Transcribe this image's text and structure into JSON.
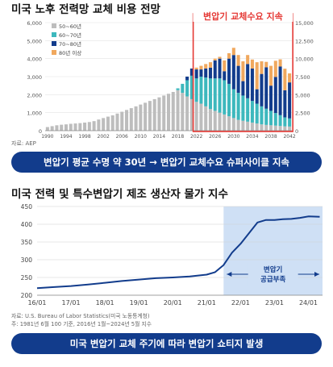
{
  "chart_data": [
    {
      "type": "bar",
      "stacked": true,
      "title": "미국 노후 전력망 교체 비용 전망",
      "ylabel": "",
      "ylabel_right": "",
      "ylim": [
        0,
        6000
      ],
      "ylim_right": [
        0,
        15000
      ],
      "y_ticks": [
        0,
        1000,
        2000,
        3000,
        4000,
        5000,
        6000
      ],
      "y_ticks_right": [
        "0",
        "2,500",
        "5,000",
        "7,500",
        "10,000",
        "12,500",
        "15,000"
      ],
      "x": [
        1990,
        1991,
        1992,
        1993,
        1994,
        1995,
        1996,
        1997,
        1998,
        1999,
        2000,
        2001,
        2002,
        2003,
        2004,
        2005,
        2006,
        2007,
        2008,
        2009,
        2010,
        2011,
        2012,
        2013,
        2014,
        2015,
        2016,
        2017,
        2018,
        2019,
        2020,
        2021,
        2022,
        2023,
        2024,
        2025,
        2026,
        2027,
        2028,
        2029,
        2030,
        2031,
        2032,
        2033,
        2034,
        2035,
        2036,
        2037,
        2038,
        2039,
        2040,
        2041,
        2042
      ],
      "x_ticks": [
        "1990",
        "1994",
        "1998",
        "2002",
        "2006",
        "2010",
        "2014",
        "2018",
        "2022",
        "2026",
        "2030",
        "2034",
        "2038",
        "2042"
      ],
      "series": [
        {
          "name": "50~60년",
          "color": "#bdbdbd",
          "values": [
            200,
            250,
            300,
            330,
            350,
            380,
            400,
            420,
            450,
            480,
            530,
            620,
            700,
            780,
            850,
            950,
            1050,
            1150,
            1250,
            1350,
            1450,
            1550,
            1650,
            1750,
            1850,
            1950,
            2050,
            2150,
            2250,
            2100,
            1900,
            1750,
            1600,
            1500,
            1350,
            1200,
            1100,
            1000,
            900,
            800,
            700,
            600,
            550,
            500,
            450,
            400,
            350,
            320,
            300,
            280,
            260,
            240,
            230
          ]
        },
        {
          "name": "60~70년",
          "color": "#3db8bd",
          "values": [
            0,
            0,
            0,
            0,
            0,
            0,
            0,
            0,
            0,
            0,
            0,
            0,
            0,
            0,
            0,
            0,
            0,
            0,
            0,
            0,
            0,
            0,
            0,
            0,
            0,
            0,
            0,
            0,
            100,
            500,
            900,
            1300,
            1300,
            1500,
            1600,
            1700,
            1800,
            1900,
            1900,
            1800,
            1600,
            1500,
            1400,
            1300,
            1200,
            1100,
            1000,
            900,
            800,
            700,
            600,
            500,
            450
          ]
        },
        {
          "name": "70~80년",
          "color": "#123c8c",
          "values": [
            0,
            0,
            0,
            0,
            0,
            0,
            0,
            0,
            0,
            0,
            0,
            0,
            0,
            0,
            0,
            0,
            0,
            0,
            0,
            0,
            0,
            0,
            0,
            0,
            0,
            0,
            0,
            0,
            0,
            0,
            200,
            400,
            500,
            400,
            500,
            600,
            1000,
            1100,
            500,
            1400,
            1900,
            1500,
            800,
            1900,
            1800,
            800,
            1800,
            2300,
            1400,
            2000,
            2700,
            1500,
            2000
          ]
        },
        {
          "name": "80년 이상",
          "color": "#f0a85e",
          "values": [
            0,
            0,
            0,
            0,
            0,
            0,
            0,
            0,
            0,
            0,
            0,
            0,
            0,
            0,
            0,
            0,
            0,
            0,
            0,
            0,
            0,
            0,
            0,
            0,
            0,
            0,
            0,
            0,
            0,
            0,
            0,
            0,
            100,
            200,
            250,
            300,
            100,
            100,
            600,
            300,
            400,
            600,
            1100,
            500,
            500,
            1500,
            700,
            300,
            1100,
            900,
            400,
            1200,
            500
          ]
        }
      ],
      "highlight_label": "변압기 교체수요 지속",
      "source": "자료: AEP"
    },
    {
      "type": "line",
      "title": "미국 전력 및 특수변압기 제조 생산자 물가 지수",
      "ylim": [
        200,
        450
      ],
      "y_ticks": [
        200,
        250,
        300,
        350,
        400,
        450
      ],
      "x_ticks": [
        "16/01",
        "17/01",
        "18/01",
        "19/01",
        "20/01",
        "21/01",
        "22/01",
        "23/01",
        "24/01"
      ],
      "series": [
        {
          "name": "",
          "color": "#123c8c",
          "x": [
            "16/01",
            "16/07",
            "17/01",
            "17/07",
            "18/01",
            "18/07",
            "19/01",
            "19/07",
            "20/01",
            "20/07",
            "21/01",
            "21/04",
            "21/07",
            "21/10",
            "22/01",
            "22/04",
            "22/07",
            "22/10",
            "23/01",
            "23/04",
            "23/07",
            "23/10",
            "24/01",
            "24/05"
          ],
          "values": [
            220,
            223,
            226,
            230,
            235,
            240,
            244,
            248,
            250,
            253,
            258,
            265,
            285,
            320,
            345,
            375,
            405,
            412,
            412,
            414,
            415,
            418,
            422,
            421
          ]
        }
      ],
      "highlight_label": "변압기\n공급부족",
      "highlight_label_lines": [
        "변압기",
        "공급부족"
      ],
      "source": "자료: U.S. Bureau of Labor Statistics(미국 노동통계청)",
      "note": "주: 1981년 6월 100 기준, 2016년 1월~2024년 5월 지수"
    }
  ],
  "banner1": "변압기 평균 수명 약 30년 → 변압기 교체수요 슈퍼사이클 지속",
  "banner2": "미국 변압기 교체 주기에 따라 변압기 쇼티지 발생"
}
